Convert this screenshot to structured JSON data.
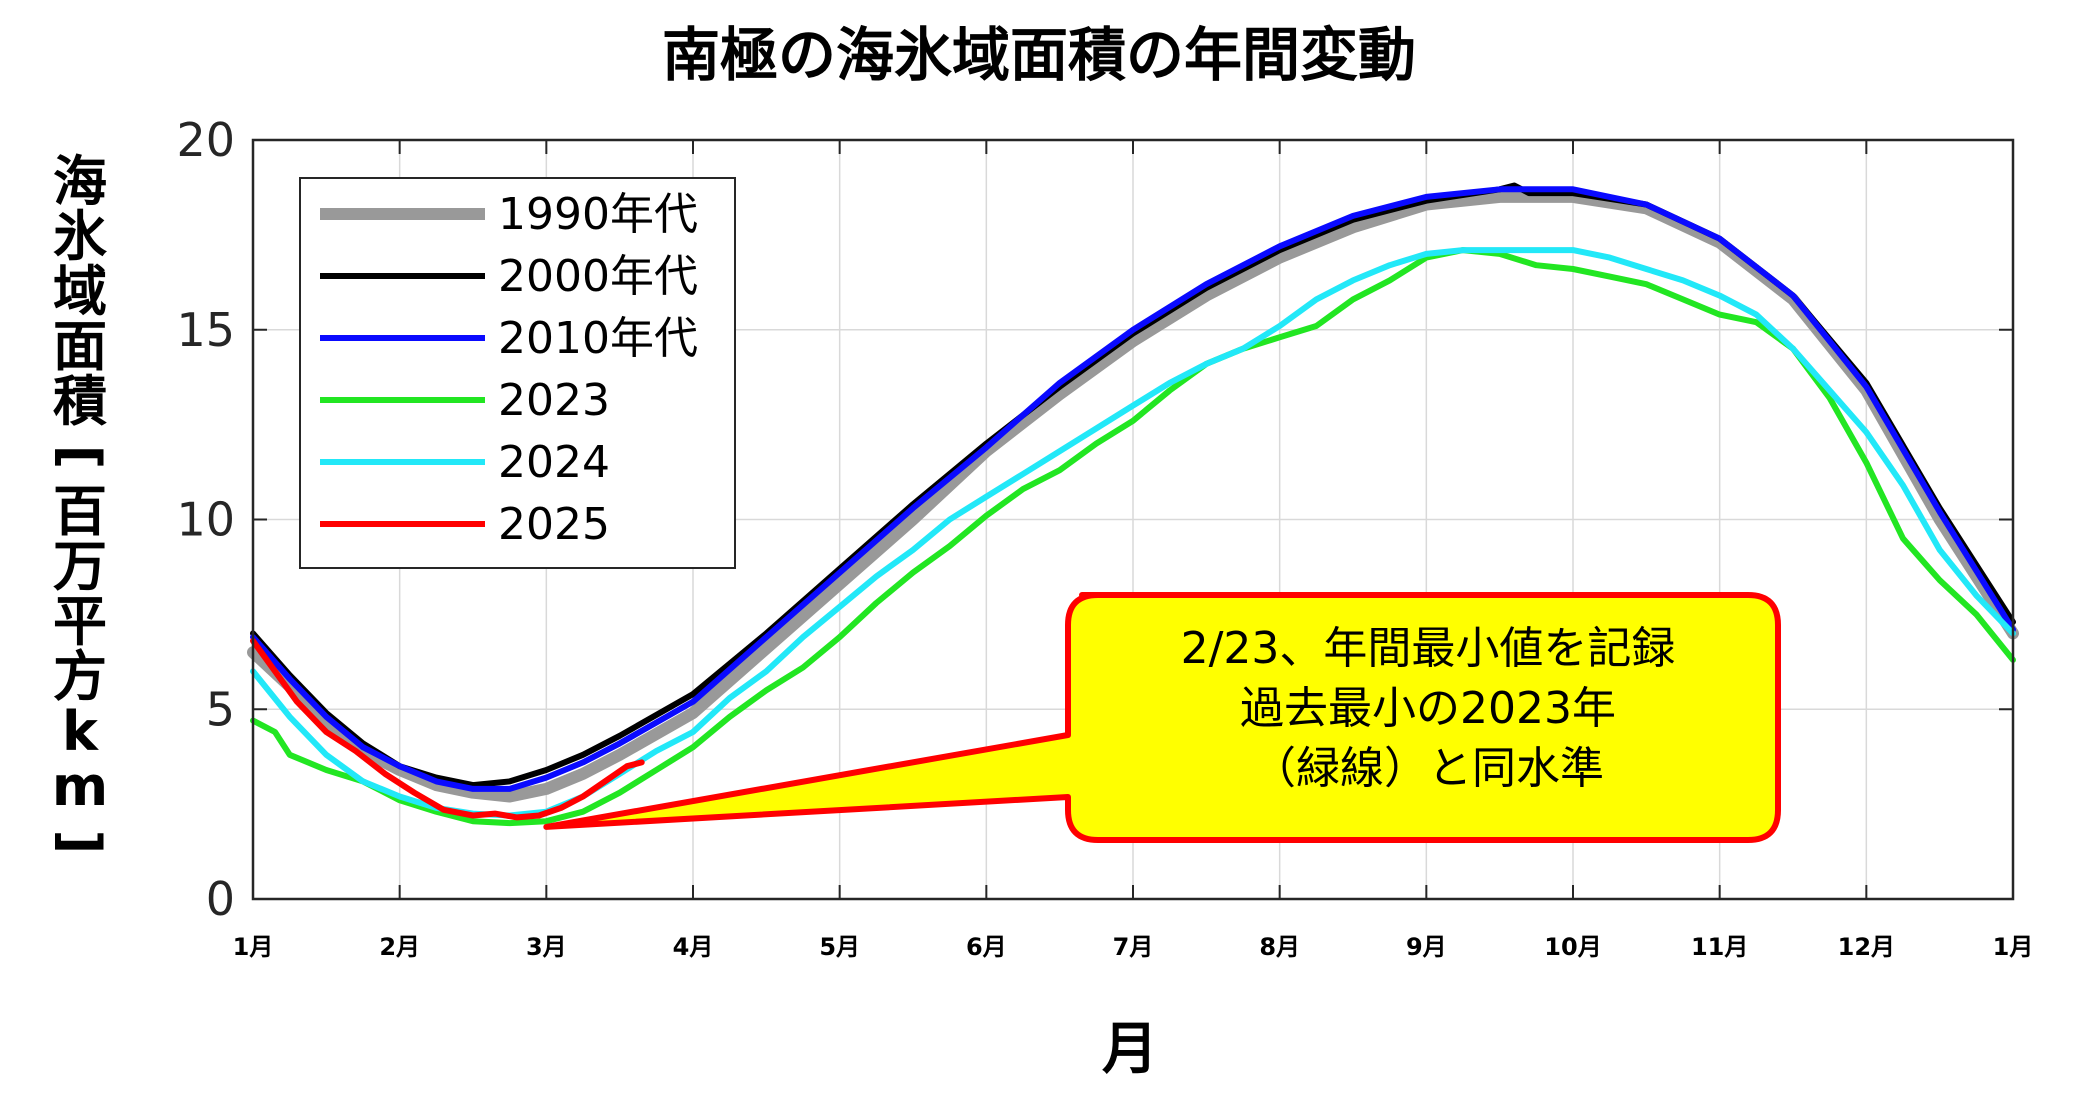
{
  "chart_data": {
    "type": "line",
    "title": "南極の海氷域面積の年間変動",
    "ylabel_chars": [
      "海",
      "氷",
      "域",
      "面",
      "積",
      "[",
      "百",
      "万",
      "平",
      "方",
      "k",
      "m",
      "]"
    ],
    "xlabel": "月",
    "ylim": [
      0,
      20
    ],
    "yticks": [
      0,
      5,
      10,
      15,
      20
    ],
    "ytick_labels": [
      "0",
      "5",
      "10",
      "15",
      "20"
    ],
    "xlim": [
      1,
      13
    ],
    "xticks": [
      1,
      2,
      3,
      4,
      5,
      6,
      7,
      8,
      9,
      10,
      11,
      12,
      13
    ],
    "xtick_labels": [
      "1月",
      "2月",
      "3月",
      "4月",
      "5月",
      "6月",
      "7月",
      "8月",
      "9月",
      "10月",
      "11月",
      "12月",
      "1月"
    ],
    "grid": true,
    "legend_position": "top-left",
    "series": [
      {
        "name": "1990年代",
        "color": "#999999",
        "x": [
          1,
          1.25,
          1.5,
          1.75,
          2,
          2.25,
          2.5,
          2.75,
          3,
          3.25,
          3.5,
          4,
          4.5,
          5,
          5.5,
          6,
          6.5,
          7,
          7.5,
          8,
          8.5,
          9,
          9.5,
          10,
          10.5,
          11,
          11.5,
          12,
          12.5,
          13
        ],
        "y": [
          6.5,
          5.6,
          4.7,
          3.9,
          3.4,
          3.0,
          2.8,
          2.7,
          2.9,
          3.3,
          3.8,
          4.9,
          6.6,
          8.3,
          10.0,
          11.8,
          13.3,
          14.7,
          15.9,
          16.9,
          17.7,
          18.3,
          18.5,
          18.5,
          18.2,
          17.3,
          15.8,
          13.4,
          10.0,
          7.0
        ]
      },
      {
        "name": "2000年代",
        "color": "#000000",
        "x": [
          1,
          1.25,
          1.5,
          1.75,
          2,
          2.25,
          2.5,
          2.75,
          3,
          3.25,
          3.5,
          4,
          4.5,
          5,
          5.5,
          6,
          6.5,
          7,
          7.5,
          8,
          8.5,
          9,
          9.5,
          9.6,
          9.7,
          10,
          10.5,
          11,
          11.5,
          12,
          12.5,
          13
        ],
        "y": [
          7.0,
          5.9,
          4.9,
          4.1,
          3.5,
          3.2,
          3.0,
          3.1,
          3.4,
          3.8,
          4.3,
          5.4,
          7.0,
          8.7,
          10.4,
          12.0,
          13.5,
          14.9,
          16.1,
          17.1,
          17.9,
          18.4,
          18.7,
          18.8,
          18.6,
          18.6,
          18.3,
          17.4,
          15.9,
          13.6,
          10.3,
          7.3
        ]
      },
      {
        "name": "2010年代",
        "color": "#0a0aff",
        "x": [
          1,
          1.25,
          1.5,
          1.75,
          2,
          2.25,
          2.5,
          2.75,
          3,
          3.25,
          3.5,
          4,
          4.5,
          5,
          5.5,
          6,
          6.5,
          7,
          7.5,
          8,
          8.5,
          9,
          9.5,
          10,
          10.5,
          11,
          11.5,
          12,
          12.5,
          13
        ],
        "y": [
          6.9,
          5.8,
          4.8,
          4.0,
          3.5,
          3.1,
          2.9,
          2.9,
          3.2,
          3.6,
          4.1,
          5.2,
          6.9,
          8.6,
          10.3,
          11.9,
          13.6,
          15.0,
          16.2,
          17.2,
          18.0,
          18.5,
          18.7,
          18.7,
          18.3,
          17.4,
          15.9,
          13.5,
          10.2,
          7.1
        ]
      },
      {
        "name": "2023",
        "color": "#22e622",
        "x": [
          1,
          1.15,
          1.25,
          1.5,
          1.75,
          2,
          2.25,
          2.5,
          2.75,
          3,
          3.25,
          3.5,
          3.75,
          4,
          4.25,
          4.5,
          4.75,
          5,
          5.25,
          5.5,
          5.75,
          6,
          6.25,
          6.5,
          6.75,
          7,
          7.25,
          7.5,
          7.75,
          8,
          8.25,
          8.5,
          8.75,
          9,
          9.25,
          9.5,
          9.75,
          10,
          10.25,
          10.5,
          10.75,
          11,
          11.25,
          11.5,
          11.75,
          12,
          12.25,
          12.5,
          12.75,
          13
        ],
        "y": [
          4.7,
          4.4,
          3.8,
          3.4,
          3.1,
          2.6,
          2.3,
          2.05,
          2.0,
          2.05,
          2.3,
          2.8,
          3.4,
          4.0,
          4.8,
          5.5,
          6.1,
          6.9,
          7.8,
          8.6,
          9.3,
          10.1,
          10.8,
          11.3,
          12.0,
          12.6,
          13.4,
          14.1,
          14.5,
          14.8,
          15.1,
          15.8,
          16.3,
          16.9,
          17.1,
          17.0,
          16.7,
          16.6,
          16.4,
          16.2,
          15.8,
          15.4,
          15.2,
          14.5,
          13.2,
          11.5,
          9.5,
          8.4,
          7.5,
          6.3
        ]
      },
      {
        "name": "2024",
        "color": "#22e8f8",
        "x": [
          1,
          1.25,
          1.5,
          1.75,
          2,
          2.25,
          2.5,
          2.75,
          3,
          3.25,
          3.5,
          3.75,
          4,
          4.25,
          4.5,
          4.75,
          5,
          5.25,
          5.5,
          5.75,
          6,
          6.25,
          6.5,
          6.75,
          7,
          7.25,
          7.5,
          7.75,
          8,
          8.25,
          8.5,
          8.75,
          9,
          9.25,
          9.5,
          9.75,
          10,
          10.25,
          10.5,
          10.75,
          11,
          11.25,
          11.5,
          11.75,
          12,
          12.25,
          12.5,
          12.75,
          13
        ],
        "y": [
          6.0,
          4.8,
          3.8,
          3.1,
          2.7,
          2.4,
          2.25,
          2.2,
          2.3,
          2.7,
          3.3,
          3.9,
          4.4,
          5.3,
          6.0,
          6.9,
          7.7,
          8.5,
          9.2,
          10.0,
          10.6,
          11.2,
          11.8,
          12.4,
          13.0,
          13.6,
          14.1,
          14.5,
          15.1,
          15.8,
          16.3,
          16.7,
          17.0,
          17.1,
          17.1,
          17.1,
          17.1,
          16.9,
          16.6,
          16.3,
          15.9,
          15.4,
          14.5,
          13.4,
          12.3,
          10.9,
          9.2,
          8.0,
          7.0
        ]
      },
      {
        "name": "2025",
        "color": "#ff0000",
        "x": [
          1,
          1.15,
          1.3,
          1.5,
          1.7,
          1.9,
          2.1,
          2.3,
          2.5,
          2.65,
          2.8,
          2.95,
          3.1,
          3.25,
          3.4,
          3.55,
          3.65
        ],
        "y": [
          6.8,
          6.0,
          5.2,
          4.4,
          3.9,
          3.3,
          2.8,
          2.35,
          2.2,
          2.25,
          2.15,
          2.2,
          2.4,
          2.7,
          3.1,
          3.5,
          3.6
        ]
      }
    ],
    "annotation": {
      "lines": [
        "2/23、年間最小値を記録",
        "過去最小の2023年",
        "（緑線）と同水準"
      ],
      "fill": "#ffff00",
      "border": "#ff0000",
      "pointer_x": 3.0,
      "pointer_y": 1.9
    }
  }
}
